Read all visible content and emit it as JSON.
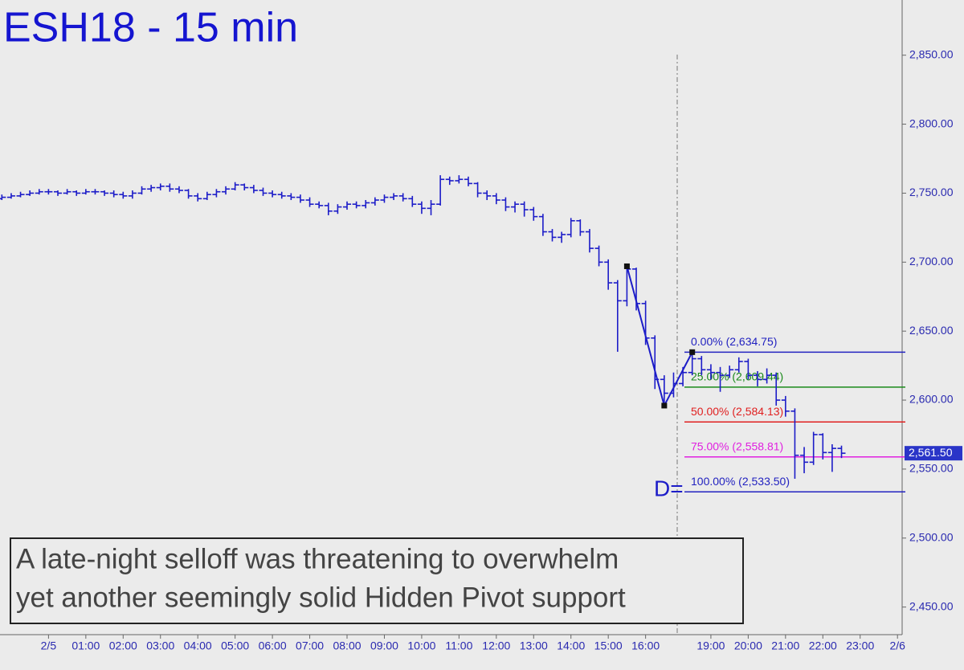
{
  "chart_data": {
    "type": "ohlc",
    "title": "ESH18 - 15 min",
    "color": "#1c1cc8",
    "x": [
      -5,
      -4,
      -3,
      -2,
      -1,
      0,
      1,
      2,
      3,
      4,
      5,
      6,
      7,
      8,
      9,
      10,
      11,
      12,
      13,
      14,
      15,
      16,
      17,
      18,
      19,
      20,
      21,
      22,
      23,
      24,
      25,
      26,
      27,
      28,
      29,
      30,
      31,
      32,
      33,
      34,
      35,
      36,
      37,
      38,
      39,
      40,
      41,
      42,
      43,
      44,
      45,
      46,
      47,
      48,
      49,
      50,
      51,
      52,
      53,
      54,
      55,
      56,
      57,
      58,
      59,
      60,
      61,
      62,
      63,
      64,
      65,
      66,
      67,
      68,
      69,
      70,
      71,
      72,
      73,
      74,
      75,
      76,
      77,
      78,
      79,
      80,
      81,
      82,
      83,
      84,
      85
    ],
    "open": [
      2746,
      2747,
      2748,
      2749,
      2750,
      2751,
      2751,
      2750,
      2751,
      2750,
      2751,
      2751,
      2750,
      2749,
      2748,
      2750,
      2753,
      2754,
      2755,
      2753,
      2752,
      2748,
      2746,
      2749,
      2751,
      2753,
      2756,
      2754,
      2752,
      2750,
      2749,
      2748,
      2747,
      2745,
      2742,
      2741,
      2737,
      2740,
      2742,
      2741,
      2743,
      2745,
      2747,
      2748,
      2746,
      2742,
      2739,
      2742,
      2760,
      2759,
      2760,
      2757,
      2750,
      2748,
      2745,
      2740,
      2742,
      2738,
      2733,
      2722,
      2718,
      2720,
      2730,
      2722,
      2710,
      2700,
      2685,
      2672,
      2695,
      2670,
      2645,
      2615,
      2605,
      2612,
      2620,
      2630,
      2622,
      2620,
      2618,
      2622,
      2628,
      2618,
      2615,
      2618,
      2600,
      2592,
      2560,
      2555,
      2575,
      2562,
      2565
    ],
    "high": [
      2749,
      2750,
      2751,
      2752,
      2753,
      2753,
      2752,
      2753,
      2752,
      2753,
      2753,
      2752,
      2752,
      2751,
      2752,
      2755,
      2756,
      2757,
      2757,
      2755,
      2753,
      2750,
      2751,
      2753,
      2755,
      2758,
      2757,
      2756,
      2754,
      2752,
      2751,
      2750,
      2749,
      2747,
      2744,
      2743,
      2742,
      2744,
      2744,
      2745,
      2747,
      2749,
      2750,
      2750,
      2748,
      2744,
      2745,
      2763,
      2762,
      2763,
      2762,
      2758,
      2752,
      2750,
      2747,
      2744,
      2744,
      2740,
      2735,
      2724,
      2722,
      2732,
      2731,
      2724,
      2712,
      2702,
      2687,
      2697,
      2696,
      2672,
      2647,
      2618,
      2620,
      2624,
      2634.75,
      2632,
      2626,
      2624,
      2625,
      2631,
      2630,
      2621,
      2623,
      2620,
      2603,
      2594,
      2566,
      2577,
      2576,
      2568,
      2567
    ],
    "low": [
      2745,
      2746,
      2747,
      2748,
      2749,
      2749,
      2748,
      2749,
      2748,
      2749,
      2749,
      2748,
      2747,
      2746,
      2746,
      2749,
      2751,
      2752,
      2751,
      2750,
      2746,
      2744,
      2745,
      2747,
      2749,
      2752,
      2752,
      2750,
      2748,
      2747,
      2746,
      2745,
      2743,
      2740,
      2739,
      2734,
      2735,
      2738,
      2739,
      2739,
      2741,
      2743,
      2745,
      2744,
      2740,
      2735,
      2734,
      2741,
      2756,
      2757,
      2755,
      2747,
      2745,
      2742,
      2737,
      2736,
      2733,
      2730,
      2719,
      2715,
      2714,
      2718,
      2719,
      2707,
      2697,
      2680,
      2635,
      2668,
      2665,
      2640,
      2608,
      2596,
      2602,
      2610,
      2618,
      2618,
      2615,
      2606,
      2616,
      2620,
      2615,
      2610,
      2612,
      2596,
      2588,
      2543,
      2547,
      2553,
      2557,
      2548,
      2558
    ],
    "close": [
      2747,
      2748,
      2749,
      2750,
      2751,
      2751,
      2750,
      2751,
      2750,
      2751,
      2751,
      2750,
      2749,
      2748,
      2750,
      2753,
      2754,
      2755,
      2753,
      2752,
      2748,
      2746,
      2749,
      2751,
      2753,
      2756,
      2754,
      2752,
      2750,
      2749,
      2748,
      2747,
      2745,
      2742,
      2741,
      2737,
      2740,
      2742,
      2741,
      2743,
      2745,
      2747,
      2748,
      2746,
      2742,
      2739,
      2742,
      2760,
      2759,
      2760,
      2757,
      2750,
      2748,
      2745,
      2740,
      2742,
      2738,
      2733,
      2722,
      2718,
      2720,
      2730,
      2722,
      2710,
      2700,
      2685,
      2672,
      2695,
      2670,
      2645,
      2615,
      2605,
      2612,
      2620,
      2630,
      2622,
      2620,
      2618,
      2622,
      2628,
      2618,
      2615,
      2618,
      2600,
      2592,
      2560,
      2555,
      2575,
      2562,
      2565,
      2561.5
    ],
    "pattern": {
      "x": [
        62,
        66,
        69
      ],
      "values": [
        2697,
        2596,
        2634.75
      ],
      "marker_color": "#111111"
    },
    "fib_levels": {
      "values": [
        2634.75,
        2609.44,
        2584.13,
        2558.81,
        2533.5
      ],
      "value_labels": [
        "0.00% (2,634.75)",
        "25.00% (2,609.44)",
        "50.00% (2,584.13)",
        "75.00% (2,558.81)",
        "100.00% (2,533.50)"
      ],
      "colors": [
        "#2222c0",
        "#1a8a1a",
        "#e02020",
        "#e020e0",
        "#2222c0"
      ]
    },
    "pattern_label": "D=",
    "last_price": {
      "value": 2561.5,
      "label": "2,561.50"
    },
    "annotation": [
      "A late-night selloff was threatening to overwhelm",
      "yet another seemingly solid Hidden Pivot support"
    ],
    "xlim": [
      -5.2,
      91.5
    ],
    "ylim": [
      2430,
      2890
    ],
    "xticks": [
      {
        "value": 0,
        "label": "2/5"
      },
      {
        "value": 4,
        "label": "01:00"
      },
      {
        "value": 8,
        "label": "02:00"
      },
      {
        "value": 12,
        "label": "03:00"
      },
      {
        "value": 16,
        "label": "04:00"
      },
      {
        "value": 20,
        "label": "05:00"
      },
      {
        "value": 24,
        "label": "06:00"
      },
      {
        "value": 28,
        "label": "07:00"
      },
      {
        "value": 32,
        "label": "08:00"
      },
      {
        "value": 36,
        "label": "09:00"
      },
      {
        "value": 40,
        "label": "10:00"
      },
      {
        "value": 44,
        "label": "11:00"
      },
      {
        "value": 48,
        "label": "12:00"
      },
      {
        "value": 52,
        "label": "13:00"
      },
      {
        "value": 56,
        "label": "14:00"
      },
      {
        "value": 60,
        "label": "15:00"
      },
      {
        "value": 64,
        "label": "16:00"
      },
      {
        "value": 71,
        "label": "19:00"
      },
      {
        "value": 75,
        "label": "20:00"
      },
      {
        "value": 79,
        "label": "21:00"
      },
      {
        "value": 83,
        "label": "22:00"
      },
      {
        "value": 87,
        "label": "23:00"
      },
      {
        "value": 91,
        "label": "2/6"
      }
    ],
    "yticks": [
      {
        "value": 2450,
        "label": "2,450.00"
      },
      {
        "value": 2500,
        "label": "2,500.00"
      },
      {
        "value": 2550,
        "label": "2,550.00"
      },
      {
        "value": 2600,
        "label": "2,600.00"
      },
      {
        "value": 2650,
        "label": "2,650.00"
      },
      {
        "value": 2700,
        "label": "2,700.00"
      },
      {
        "value": 2750,
        "label": "2,750.00"
      },
      {
        "value": 2800,
        "label": "2,800.00"
      },
      {
        "value": 2850,
        "label": "2,850.00"
      }
    ]
  }
}
